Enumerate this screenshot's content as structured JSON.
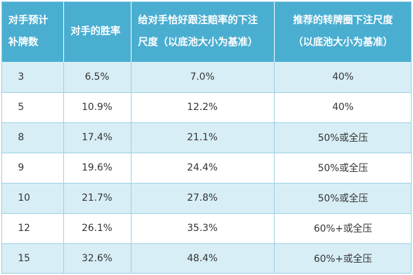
{
  "table": {
    "headers": {
      "outs": [
        "对手预计",
        "补牌数"
      ],
      "win_rate": "对手的胜率",
      "odds_bet": [
        "给对手恰好跟注赔率的下注",
        "尺度（以底池大小为基准）"
      ],
      "turn_bet": [
        "推荐的转牌圈下注尺度",
        "（以底池大小为基准）"
      ]
    },
    "rows": [
      {
        "outs": "3",
        "win_rate": "6.5%",
        "odds_bet": "7.0%",
        "turn_bet": "40%"
      },
      {
        "outs": "5",
        "win_rate": "10.9%",
        "odds_bet": "12.2%",
        "turn_bet": "40%"
      },
      {
        "outs": "8",
        "win_rate": "17.4%",
        "odds_bet": "21.1%",
        "turn_bet": "50%或全压"
      },
      {
        "outs": "9",
        "win_rate": "19.6%",
        "odds_bet": "24.4%",
        "turn_bet": "50%或全压"
      },
      {
        "outs": "10",
        "win_rate": "21.7%",
        "odds_bet": "27.8%",
        "turn_bet": "50%或全压"
      },
      {
        "outs": "12",
        "win_rate": "26.1%",
        "odds_bet": "35.3%",
        "turn_bet": "60%+或全压"
      },
      {
        "outs": "15",
        "win_rate": "32.6%",
        "odds_bet": "48.4%",
        "turn_bet": "60%+或全压"
      }
    ],
    "colors": {
      "header_bg": "#4aaed1",
      "stripe_bg": "#d8eef6",
      "border": "#9ccfe4"
    }
  }
}
